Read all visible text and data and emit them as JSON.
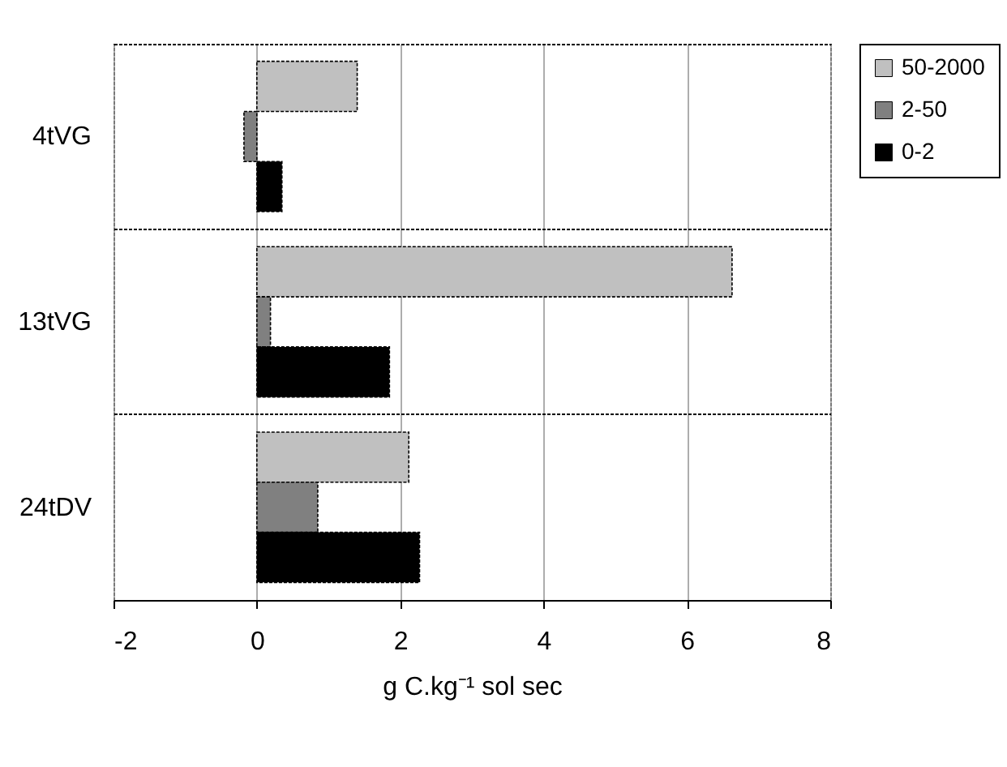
{
  "chart_data": {
    "type": "bar",
    "orientation": "horizontal",
    "xlabel": "g C.kg⁻¹ sol sec",
    "categories": [
      "4tVG",
      "13tVG",
      "24tDV"
    ],
    "series": [
      {
        "name": "50-2000",
        "color": "#c0c0c0",
        "values": [
          1.4,
          6.63,
          2.12
        ]
      },
      {
        "name": "2-50",
        "color": "#808080",
        "values": [
          -0.18,
          0.19,
          0.85
        ]
      },
      {
        "name": "0-2",
        "color": "#000000",
        "values": [
          0.35,
          1.85,
          2.27
        ]
      }
    ],
    "xlim": [
      -2,
      8
    ],
    "xticks": [
      -2,
      0,
      2,
      4,
      6,
      8
    ],
    "grid": true,
    "legend": "right"
  }
}
